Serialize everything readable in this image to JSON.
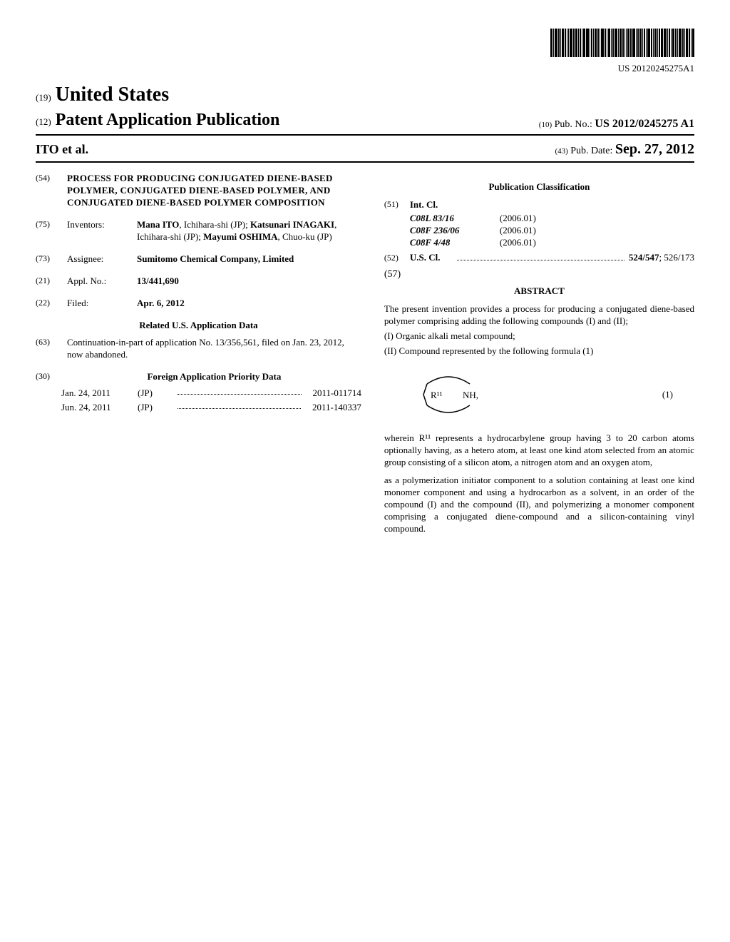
{
  "pub_id_short": "US 20120245275A1",
  "header": {
    "us_prefix": "(19)",
    "us_title": "United States",
    "pap_prefix": "(12)",
    "pap_title": "Patent Application Publication",
    "authors": "ITO et al.",
    "pub_no_prefix": "(10)",
    "pub_no_label": "Pub. No.:",
    "pub_no_value": "US 2012/0245275 A1",
    "pub_date_prefix": "(43)",
    "pub_date_label": "Pub. Date:",
    "pub_date_value": "Sep. 27, 2012"
  },
  "left": {
    "title_code": "(54)",
    "title_text": "PROCESS FOR PRODUCING CONJUGATED DIENE-BASED POLYMER, CONJUGATED DIENE-BASED POLYMER, AND CONJUGATED DIENE-BASED POLYMER COMPOSITION",
    "inventors_code": "(75)",
    "inventors_label": "Inventors:",
    "inventors_value": "Mana ITO, Ichihara-shi (JP); Katsunari INAGAKI, Ichihara-shi (JP); Mayumi OSHIMA, Chuo-ku (JP)",
    "assignee_code": "(73)",
    "assignee_label": "Assignee:",
    "assignee_value": "Sumitomo Chemical Company, Limited",
    "appl_code": "(21)",
    "appl_label": "Appl. No.:",
    "appl_value": "13/441,690",
    "filed_code": "(22)",
    "filed_label": "Filed:",
    "filed_value": "Apr. 6, 2012",
    "related_head": "Related U.S. Application Data",
    "continuation_code": "(63)",
    "continuation_text": "Continuation-in-part of application No. 13/356,561, filed on Jan. 23, 2012, now abandoned.",
    "fpr_code": "(30)",
    "fpr_head": "Foreign Application Priority Data",
    "priority": [
      {
        "date": "Jan. 24, 2011",
        "cc": "(JP)",
        "num": "2011-011714"
      },
      {
        "date": "Jun. 24, 2011",
        "cc": "(JP)",
        "num": "2011-140337"
      }
    ]
  },
  "right": {
    "pc_head": "Publication Classification",
    "intcl_code": "(51)",
    "intcl_label": "Int. Cl.",
    "intcl": [
      {
        "code": "C08L 83/16",
        "ver": "(2006.01)"
      },
      {
        "code": "C08F 236/06",
        "ver": "(2006.01)"
      },
      {
        "code": "C08F 4/48",
        "ver": "(2006.01)"
      }
    ],
    "uscl_code": "(52)",
    "uscl_label": "U.S. Cl.",
    "uscl_value": "524/547; 526/173",
    "abstract_code": "(57)",
    "abstract_head": "ABSTRACT",
    "abstract_p1": "The present invention provides a process for producing a conjugated diene-based polymer comprising adding the following compounds (I) and (II);",
    "abstract_p2": "(I) Organic alkali metal compound;",
    "abstract_p3": "(II) Compound represented by the following formula (1)",
    "formula_label_r": "R¹¹",
    "formula_label_nh": "NH,",
    "formula_num": "(1)",
    "where_p1": "wherein R¹¹ represents a hydrocarbylene group having 3 to 20 carbon atoms optionally having, as a hetero atom, at least one kind atom selected from an atomic group consisting of a silicon atom, a nitrogen atom and an oxygen atom,",
    "where_p2": "as a polymerization initiator component to a solution containing at least one kind monomer component and using a hydrocarbon as a solvent, in an order of the compound (I) and the compound (II), and polymerizing a monomer component comprising a conjugated diene-compound and a silicon-containing vinyl compound."
  },
  "style": {
    "barcode_widths": [
      3,
      1,
      4,
      2,
      1,
      3,
      2,
      1,
      1,
      4,
      2,
      3,
      1,
      2,
      1,
      3,
      4,
      1,
      2,
      1,
      3,
      2,
      1,
      4,
      2,
      1,
      3,
      1,
      2,
      4,
      1,
      3,
      2,
      1,
      1,
      3,
      2,
      4,
      1,
      2,
      3,
      1,
      2,
      1,
      4,
      2,
      1,
      3,
      1,
      2,
      3,
      4,
      1,
      2,
      1,
      3,
      2,
      1,
      4,
      2,
      1,
      3,
      2,
      1,
      3
    ],
    "colors": {
      "text": "#000000",
      "bg": "#ffffff"
    }
  }
}
